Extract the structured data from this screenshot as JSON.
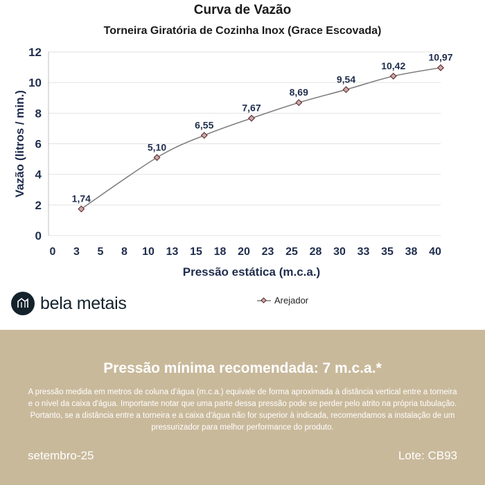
{
  "chart_data": {
    "type": "line",
    "title": "Curva de Vazão",
    "subtitle": "Torneira Giratória de Cozinha Inox (Grace Escovada)",
    "xlabel": "Pressão estática (m.c.a.)",
    "ylabel": "Vazão (litros / min.)",
    "xlim": [
      0,
      40
    ],
    "ylim": [
      0,
      12
    ],
    "x_ticks": [
      "0",
      "3",
      "5",
      "8",
      "10",
      "13",
      "15",
      "18",
      "20",
      "23",
      "25",
      "28",
      "30",
      "33",
      "35",
      "38",
      "40"
    ],
    "y_ticks": [
      "0",
      "2",
      "4",
      "6",
      "8",
      "10",
      "12"
    ],
    "legend_position": "bottom-right",
    "series": [
      {
        "name": "Arejador",
        "color": "#7f7f7f",
        "marker_color": "#5a1f24",
        "x": [
          2,
          10,
          15,
          20,
          25,
          30,
          35,
          40
        ],
        "values": [
          1.74,
          5.1,
          6.55,
          7.67,
          8.69,
          9.54,
          10.42,
          10.97
        ],
        "labels": [
          "1,74",
          "5,10",
          "6,55",
          "7,67",
          "8,69",
          "9,54",
          "10,42",
          "10,97"
        ]
      }
    ]
  },
  "brand": {
    "name": "bela metais",
    "icon": "bela-metais-logo-icon"
  },
  "footer": {
    "heading": "Pressão mínima recomendada: 7 m.c.a.*",
    "body": "A pressão medida em metros de coluna d'água (m.c.a.) equivale de forma aproximada à distância vertical entre a torneira e o nível da caixa d'água. Importante notar que uma parte dessa pressão pode se perder pelo atrito na própria tubulação. Portanto, se a distância entre a torneira e a caixa d'água não for superior à indicada, recomendamos a instalação de um pressurizador para melhor performance do produto.",
    "date": "setembro-25",
    "batch": "Lote: CB93"
  },
  "colors": {
    "axis_text": "#1f2d4d",
    "grid": "#e2e2e2",
    "footer_bg": "#c9b99b",
    "brand_dark": "#14222c"
  }
}
